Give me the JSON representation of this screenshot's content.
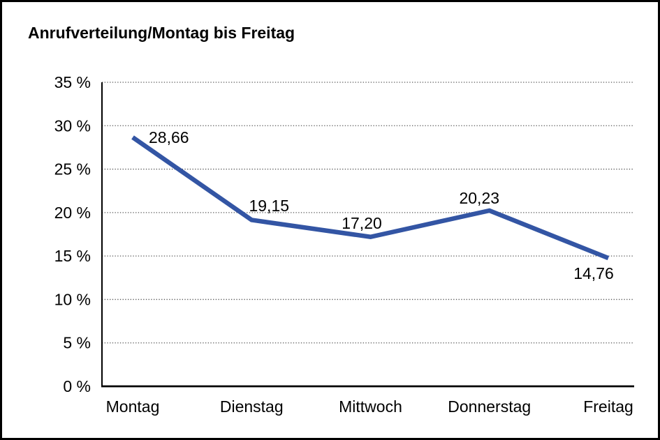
{
  "panel": {
    "background": "#ffffff",
    "border_color": "#000000"
  },
  "chart_data": {
    "type": "line",
    "title": "Anrufverteilung/Montag bis Freitag",
    "categories": [
      "Montag",
      "Dienstag",
      "Mittwoch",
      "Donnerstag",
      "Freitag"
    ],
    "values": [
      28.66,
      19.15,
      17.2,
      20.23,
      14.76
    ],
    "value_labels": [
      "28,66",
      "19,15",
      "17,20",
      "20,23",
      "14,76"
    ],
    "y_ticks": {
      "values": [
        0,
        5,
        10,
        15,
        20,
        25,
        30,
        35
      ],
      "labels": [
        "0 %",
        "5 %",
        "10 %",
        "15 %",
        "20 %",
        "25 %",
        "30 %",
        "35 %"
      ]
    },
    "ylim": [
      0,
      35
    ],
    "xlabel": "",
    "ylabel": "",
    "grid": "horizontal-dotted",
    "legend": "none",
    "line_color": "#3355A4",
    "grid_color": "#555555",
    "axis_color": "#000000",
    "text_color": "#000000"
  }
}
